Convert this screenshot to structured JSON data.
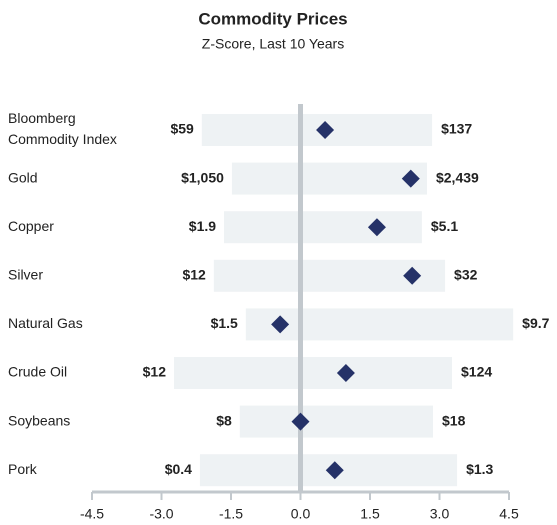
{
  "chart_data": {
    "type": "range-dot",
    "title": "Commodity Prices",
    "subtitle": "Z-Score, Last 10 Years",
    "categories": [
      "Bloomberg Commodity Index",
      "Gold",
      "Copper",
      "Silver",
      "Natural Gas",
      "Crude Oil",
      "Soybeans",
      "Pork"
    ],
    "low_values": [
      -2.13,
      -1.48,
      -1.65,
      -1.87,
      -1.18,
      -2.73,
      -1.31,
      -2.17
    ],
    "high_values": [
      2.84,
      2.73,
      2.62,
      3.12,
      4.59,
      3.27,
      2.86,
      3.38
    ],
    "values": [
      0.53,
      2.38,
      1.65,
      2.41,
      -0.44,
      0.98,
      0.0,
      0.74
    ],
    "low_labels": [
      "$59",
      "$1,050",
      "$1.9",
      "$12",
      "$1.5",
      "$12",
      "$8",
      "$0.4"
    ],
    "high_labels": [
      "$137",
      "$2,439",
      "$5.1",
      "$32",
      "$9.7",
      "$124",
      "$18",
      "$1.3"
    ],
    "range_color": "#eef2f4",
    "color": "#253268",
    "axis_color": "#c2c8cd",
    "xlim": [
      -4.5,
      4.5
    ],
    "xticks": [
      -4.5,
      {
        "value": -3,
        "label": "-3.0"
      },
      -1.5,
      {
        "value": 0,
        "label": "0.0"
      },
      1.5,
      {
        "value": 3,
        "label": "3.0"
      },
      4.5
    ]
  }
}
